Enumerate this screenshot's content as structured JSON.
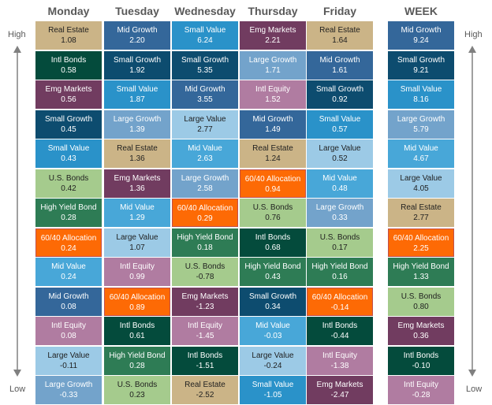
{
  "columns": [
    "Monday",
    "Tuesday",
    "Wednesday",
    "Thursday",
    "Friday",
    "WEEK"
  ],
  "scale": {
    "high": "High",
    "low": "Low"
  },
  "asset_colors": {
    "Real Estate": "#cbb487",
    "Intl Bonds": "#044b3c",
    "Emg Markets": "#713c60",
    "Small Growth": "#0d4c6f",
    "Small Value": "#2a92c9",
    "U.S. Bonds": "#a5cb8d",
    "High Yield Bond": "#2e7c55",
    "60/40 Allocation": "#fd6a05",
    "Mid Value": "#48a7d8",
    "Mid Growth": "#34679a",
    "Intl Equity": "#b07ca1",
    "Large Value": "#9ccae6",
    "Large Growth": "#73a3cb"
  },
  "light_text_assets": [
    "Real Estate",
    "U.S. Bonds",
    "Large Value"
  ],
  "chart_data": {
    "type": "table",
    "columns": [
      "Monday",
      "Tuesday",
      "Wednesday",
      "Thursday",
      "Friday",
      "WEEK"
    ],
    "rows": [
      [
        {
          "name": "Real Estate",
          "value": "1.08"
        },
        {
          "name": "Mid Growth",
          "value": "2.20"
        },
        {
          "name": "Small Value",
          "value": "6.24"
        },
        {
          "name": "Emg Markets",
          "value": "2.21"
        },
        {
          "name": "Real Estate",
          "value": "1.64"
        },
        {
          "name": "Mid Growth",
          "value": "9.24"
        }
      ],
      [
        {
          "name": "Intl Bonds",
          "value": "0.58"
        },
        {
          "name": "Small Growth",
          "value": "1.92"
        },
        {
          "name": "Small Growth",
          "value": "5.35"
        },
        {
          "name": "Large Growth",
          "value": "1.71"
        },
        {
          "name": "Mid Growth",
          "value": "1.61"
        },
        {
          "name": "Small Growth",
          "value": "9.21"
        }
      ],
      [
        {
          "name": "Emg Markets",
          "value": "0.56"
        },
        {
          "name": "Small Value",
          "value": "1.87"
        },
        {
          "name": "Mid Growth",
          "value": "3.55"
        },
        {
          "name": "Intl Equity",
          "value": "1.52"
        },
        {
          "name": "Small Growth",
          "value": "0.92"
        },
        {
          "name": "Small Value",
          "value": "8.16"
        }
      ],
      [
        {
          "name": "Small Growth",
          "value": "0.45"
        },
        {
          "name": "Large Growth",
          "value": "1.39"
        },
        {
          "name": "Large Value",
          "value": "2.77"
        },
        {
          "name": "Mid Growth",
          "value": "1.49"
        },
        {
          "name": "Small Value",
          "value": "0.57"
        },
        {
          "name": "Large Growth",
          "value": "5.79"
        }
      ],
      [
        {
          "name": "Small Value",
          "value": "0.43"
        },
        {
          "name": "Real Estate",
          "value": "1.36"
        },
        {
          "name": "Mid Value",
          "value": "2.63"
        },
        {
          "name": "Real Estate",
          "value": "1.24"
        },
        {
          "name": "Large Value",
          "value": "0.52"
        },
        {
          "name": "Mid Value",
          "value": "4.67"
        }
      ],
      [
        {
          "name": "U.S. Bonds",
          "value": "0.42"
        },
        {
          "name": "Emg Markets",
          "value": "1.36"
        },
        {
          "name": "Large Growth",
          "value": "2.58"
        },
        {
          "name": "60/40 Allocation",
          "value": "0.94"
        },
        {
          "name": "Mid Value",
          "value": "0.48"
        },
        {
          "name": "Large Value",
          "value": "4.05"
        }
      ],
      [
        {
          "name": "High Yield Bond",
          "value": "0.28"
        },
        {
          "name": "Mid Value",
          "value": "1.29"
        },
        {
          "name": "60/40 Allocation",
          "value": "0.29"
        },
        {
          "name": "U.S. Bonds",
          "value": "0.76"
        },
        {
          "name": "Large Growth",
          "value": "0.33"
        },
        {
          "name": "Real Estate",
          "value": "2.77"
        }
      ],
      [
        {
          "name": "60/40 Allocation",
          "value": "0.24"
        },
        {
          "name": "Large Value",
          "value": "1.07"
        },
        {
          "name": "High Yield Bond",
          "value": "0.18"
        },
        {
          "name": "Intl Bonds",
          "value": "0.68"
        },
        {
          "name": "U.S. Bonds",
          "value": "0.17"
        },
        {
          "name": "60/40 Allocation",
          "value": "2.25"
        }
      ],
      [
        {
          "name": "Mid Value",
          "value": "0.24"
        },
        {
          "name": "Intl Equity",
          "value": "0.99"
        },
        {
          "name": "U.S. Bonds",
          "value": "-0.78"
        },
        {
          "name": "High Yield Bond",
          "value": "0.43"
        },
        {
          "name": "High Yield Bond",
          "value": "0.16"
        },
        {
          "name": "High Yield Bond",
          "value": "1.33"
        }
      ],
      [
        {
          "name": "Mid Growth",
          "value": "0.08"
        },
        {
          "name": "60/40 Allocation",
          "value": "0.89"
        },
        {
          "name": "Emg Markets",
          "value": "-1.23"
        },
        {
          "name": "Small Growth",
          "value": "0.34"
        },
        {
          "name": "60/40 Allocation",
          "value": "-0.14"
        },
        {
          "name": "U.S. Bonds",
          "value": "0.80"
        }
      ],
      [
        {
          "name": "Intl Equity",
          "value": "0.08"
        },
        {
          "name": "Intl Bonds",
          "value": "0.61"
        },
        {
          "name": "Intl Equity",
          "value": "-1.45"
        },
        {
          "name": "Mid Value",
          "value": "-0.03"
        },
        {
          "name": "Intl Bonds",
          "value": "-0.44"
        },
        {
          "name": "Emg Markets",
          "value": "0.36"
        }
      ],
      [
        {
          "name": "Large Value",
          "value": "-0.11"
        },
        {
          "name": "High Yield Bond",
          "value": "0.28"
        },
        {
          "name": "Intl Bonds",
          "value": "-1.51"
        },
        {
          "name": "Large Value",
          "value": "-0.24"
        },
        {
          "name": "Intl Equity",
          "value": "-1.38"
        },
        {
          "name": "Intl Bonds",
          "value": "-0.10"
        }
      ],
      [
        {
          "name": "Large Growth",
          "value": "-0.33"
        },
        {
          "name": "U.S. Bonds",
          "value": "0.23"
        },
        {
          "name": "Real Estate",
          "value": "-2.52"
        },
        {
          "name": "Small Value",
          "value": "-1.05"
        },
        {
          "name": "Emg Markets",
          "value": "-2.47"
        },
        {
          "name": "Intl Equity",
          "value": "-0.28"
        }
      ]
    ]
  }
}
